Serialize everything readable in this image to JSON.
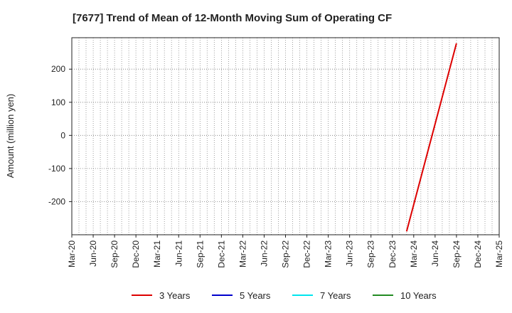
{
  "chart_data": {
    "type": "line",
    "title": "[7677]  Trend of Mean of 12-Month Moving Sum of Operating CF",
    "xlabel": "",
    "ylabel": "Amount (million yen)",
    "x_tick_labels": [
      "Mar-20",
      "Jun-20",
      "Sep-20",
      "Dec-20",
      "Mar-21",
      "Jun-21",
      "Sep-21",
      "Dec-21",
      "Mar-22",
      "Jun-22",
      "Sep-22",
      "Dec-22",
      "Mar-23",
      "Jun-23",
      "Sep-23",
      "Dec-23",
      "Mar-24",
      "Jun-24",
      "Sep-24",
      "Dec-24",
      "Mar-25"
    ],
    "y_ticks": [
      -200,
      -100,
      0,
      100,
      200
    ],
    "ylim": [
      -300,
      295
    ],
    "grid": true,
    "legend_position": "bottom",
    "series": [
      {
        "name": "3 Years",
        "color": "#dd0000",
        "points": [
          [
            "Feb-24",
            -290
          ],
          [
            "Sep-24",
            278
          ]
        ]
      },
      {
        "name": "5 Years",
        "color": "#0000cc",
        "points": []
      },
      {
        "name": "7 Years",
        "color": "#00e5ee",
        "points": []
      },
      {
        "name": "10 Years",
        "color": "#228b22",
        "points": []
      }
    ]
  }
}
